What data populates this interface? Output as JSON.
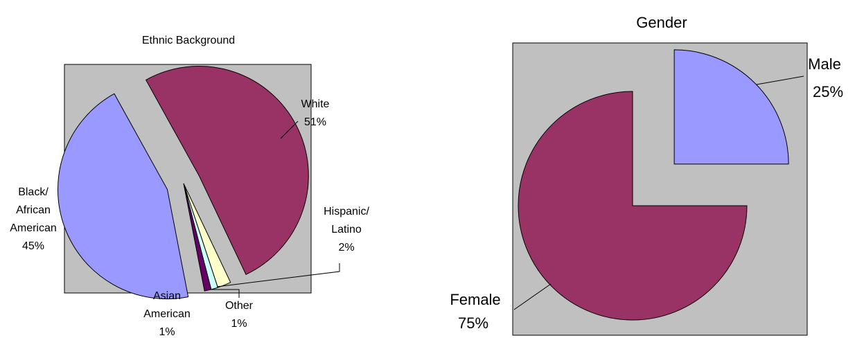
{
  "chart_data": [
    {
      "type": "pie",
      "title": "Ethnic Background",
      "plot_background": "#c0c0c0",
      "slices": [
        {
          "label": "White",
          "percent_label": "51%",
          "value": 51,
          "color": "#993366"
        },
        {
          "label": "Hispanic/ Latino",
          "label_lines": [
            "Hispanic/",
            "Latino"
          ],
          "percent_label": "2%",
          "value": 2,
          "color": "#ffffcc"
        },
        {
          "label": "Other",
          "percent_label": "1%",
          "value": 1,
          "color": "#ccffff"
        },
        {
          "label": "Asian American",
          "label_lines": [
            "Asian",
            "American"
          ],
          "percent_label": "1%",
          "value": 1,
          "color": "#660066"
        },
        {
          "label": "Black/ African American",
          "label_lines": [
            "Black/",
            "African",
            "American"
          ],
          "percent_label": "45%",
          "value": 45,
          "color": "#9999ff"
        }
      ]
    },
    {
      "type": "pie",
      "title": "Gender",
      "plot_background": "#c0c0c0",
      "slices": [
        {
          "label": "Male",
          "percent_label": "25%",
          "value": 25,
          "color": "#9999ff"
        },
        {
          "label": "Female",
          "percent_label": "75%",
          "value": 75,
          "color": "#993366"
        }
      ]
    }
  ]
}
